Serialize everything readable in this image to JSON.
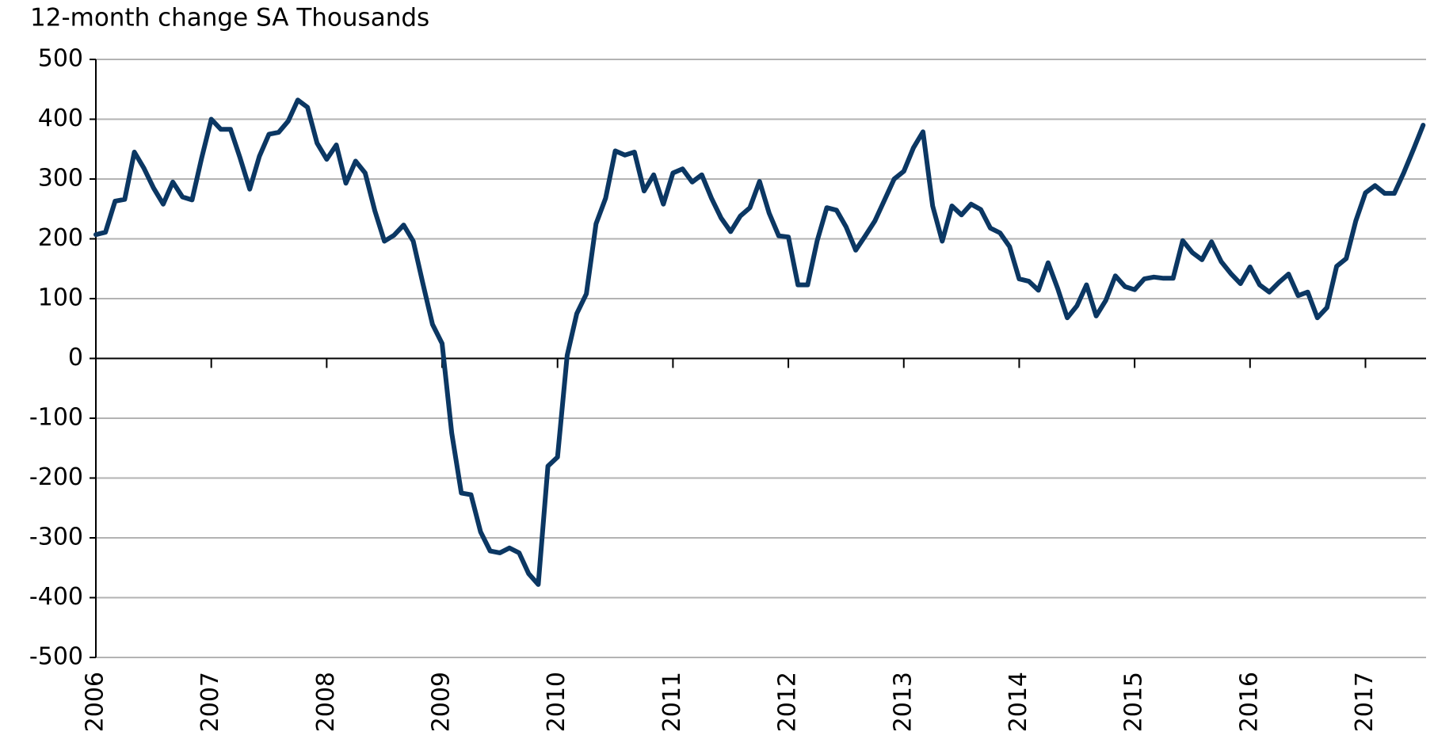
{
  "chart_data": {
    "type": "line",
    "title": "12-month change SA Thousands",
    "categories": [
      "2006",
      null,
      null,
      null,
      null,
      null,
      null,
      null,
      null,
      null,
      null,
      null,
      "2007",
      null,
      null,
      null,
      null,
      null,
      null,
      null,
      null,
      null,
      null,
      null,
      "2008",
      null,
      null,
      null,
      null,
      null,
      null,
      null,
      null,
      null,
      null,
      null,
      "2009",
      null,
      null,
      null,
      null,
      null,
      null,
      null,
      null,
      null,
      null,
      null,
      "2010",
      null,
      null,
      null,
      null,
      null,
      null,
      null,
      null,
      null,
      null,
      null,
      "2011",
      null,
      null,
      null,
      null,
      null,
      null,
      null,
      null,
      null,
      null,
      null,
      "2012",
      null,
      null,
      null,
      null,
      null,
      null,
      null,
      null,
      null,
      null,
      null,
      "2013",
      null,
      null,
      null,
      null,
      null,
      null,
      null,
      null,
      null,
      null,
      null,
      "2014",
      null,
      null,
      null,
      null,
      null,
      null,
      null,
      null,
      null,
      null,
      null,
      "2015",
      null,
      null,
      null,
      null,
      null,
      null,
      null,
      null,
      null,
      null,
      null,
      "2016",
      null,
      null,
      null,
      null,
      null,
      null,
      null,
      null,
      null,
      null,
      null,
      "2017",
      null,
      null,
      null,
      null,
      null,
      null
    ],
    "values": [
      207,
      211,
      263,
      266,
      345,
      318,
      285,
      258,
      295,
      270,
      265,
      335,
      400,
      383,
      383,
      335,
      283,
      338,
      375,
      378,
      397,
      432,
      420,
      360,
      333,
      357,
      293,
      330,
      310,
      247,
      196,
      206,
      223,
      196,
      125,
      57,
      25,
      -125,
      -225,
      -228,
      -290,
      -322,
      -325,
      -317,
      -325,
      -360,
      -378,
      -180,
      -165,
      5,
      75,
      108,
      225,
      268,
      347,
      340,
      345,
      280,
      307,
      258,
      310,
      317,
      295,
      307,
      268,
      235,
      212,
      238,
      252,
      296,
      243,
      205,
      203,
      123,
      123,
      197,
      252,
      248,
      220,
      181,
      205,
      230,
      265,
      300,
      313,
      352,
      379,
      255,
      196,
      255,
      240,
      258,
      249,
      218,
      210,
      187,
      133,
      129,
      114,
      160,
      117,
      68,
      88,
      123,
      71,
      97,
      138,
      120,
      115,
      133,
      136,
      134,
      134,
      197,
      177,
      165,
      195,
      162,
      142,
      125,
      153,
      123,
      111,
      127,
      141,
      105,
      111,
      68,
      85,
      154,
      167,
      230,
      277,
      289,
      276,
      276,
      311,
      350,
      390
    ],
    "color": "#0b3763",
    "ylim": [
      -500,
      500
    ],
    "yticks": [
      -500,
      -400,
      -300,
      -200,
      -100,
      0,
      100,
      200,
      300,
      400,
      500
    ],
    "grid": true
  }
}
